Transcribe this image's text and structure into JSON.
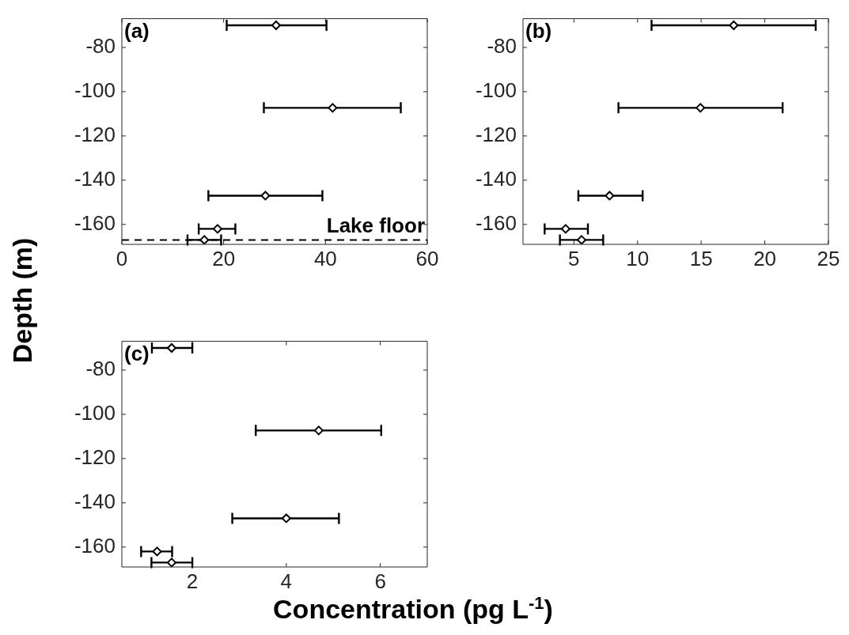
{
  "chart_data": [
    {
      "type": "scatter",
      "ylabel": "Depth (m)",
      "annotations": [
        "(a)"
      ],
      "marker": "diamond",
      "xlim": [
        0,
        60
      ],
      "xticks": [
        0,
        20,
        40,
        60
      ],
      "ylim": [
        -169,
        -67
      ],
      "yticks": [
        -160,
        -140,
        -120,
        -100,
        -80
      ],
      "series": [
        {
          "color": "#000000",
          "x": [
            30.3,
            41.4,
            28.2,
            18.8,
            16.2
          ],
          "values": [
            -70,
            -107.3,
            -147,
            -162,
            -167
          ],
          "xerrors": [
            [
              20.6,
              40.2
            ],
            [
              27.9,
              54.8
            ],
            [
              17.0,
              39.4
            ],
            [
              15.1,
              22.3
            ],
            [
              12.9,
              19.5
            ]
          ]
        }
      ],
      "ref_lines": [
        {
          "axis": "y",
          "value": -167,
          "label": "Lake floor",
          "line_style": "dashed",
          "color": "#000000"
        }
      ]
    },
    {
      "type": "scatter",
      "annotations": [
        "(b)"
      ],
      "marker": "diamond",
      "xlim": [
        1,
        25
      ],
      "xticks": [
        5,
        10,
        15,
        20,
        25
      ],
      "ylim": [
        -169,
        -67
      ],
      "yticks": [
        -160,
        -140,
        -120,
        -100,
        -80
      ],
      "series": [
        {
          "color": "#000000",
          "x": [
            17.56,
            14.94,
            7.8,
            4.35,
            5.6
          ],
          "values": [
            -70,
            -107.3,
            -147,
            -162,
            -167
          ],
          "xerrors": [
            [
              11.1,
              24.0
            ],
            [
              8.5,
              21.4
            ],
            [
              5.35,
              10.4
            ],
            [
              2.7,
              6.1
            ],
            [
              3.9,
              7.3
            ]
          ]
        }
      ]
    },
    {
      "type": "scatter",
      "xlabel": "Concentration (pg L$^{-1}$)",
      "annotations": [
        "(c)"
      ],
      "marker": "diamond",
      "xlim": [
        0.5,
        7
      ],
      "xticks": [
        2,
        4,
        6
      ],
      "ylim": [
        -169,
        -67
      ],
      "yticks": [
        -160,
        -140,
        -120,
        -100,
        -80
      ],
      "series": [
        {
          "color": "#000000",
          "x": [
            1.56,
            4.69,
            4.0,
            1.25,
            1.56
          ],
          "values": [
            -70,
            -107.3,
            -147,
            -162,
            -167
          ],
          "xerrors": [
            [
              1.14,
              2.0
            ],
            [
              3.35,
              6.02
            ],
            [
              2.85,
              5.12
            ],
            [
              0.91,
              1.57
            ],
            [
              1.13,
              2.0
            ]
          ]
        }
      ]
    }
  ]
}
